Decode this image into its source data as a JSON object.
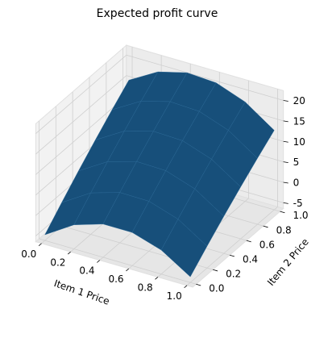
{
  "chart_data": {
    "type": "surface",
    "title": "Expected profit curve",
    "xlabel": "Item 1 Price",
    "ylabel": "Item 2 Price",
    "x": [
      0,
      0.2,
      0.4,
      0.6,
      0.8,
      1
    ],
    "y": [
      0,
      0.2,
      0.4,
      0.6,
      0.8,
      1
    ],
    "z": [
      [
        -5,
        -0.52,
        1.72,
        1.72,
        -0.52,
        -5
      ],
      [
        -0.68,
        3.72,
        5.88,
        5.8,
        3.48,
        -1.08
      ],
      [
        3.48,
        7.8,
        9.88,
        9.72,
        7.32,
        2.68
      ],
      [
        7.48,
        11.72,
        13.72,
        13.48,
        11.0,
        6.28
      ],
      [
        11.32,
        15.48,
        17.4,
        17.08,
        14.52,
        9.72
      ],
      [
        15,
        19.08,
        20.92,
        20.52,
        17.88,
        13
      ]
    ],
    "xlim": [
      -0.04,
      1.04
    ],
    "ylim": [
      -0.04,
      1.04
    ],
    "zlim": [
      -6.4,
      22.4
    ],
    "xticks": [
      {
        "value": 0,
        "label": "0.0"
      },
      0.2,
      0.4,
      0.6,
      0.8,
      {
        "value": 1,
        "label": "1.0"
      }
    ],
    "yticks": [
      {
        "value": 0,
        "label": "0.0"
      },
      0.2,
      0.4,
      0.6,
      0.8,
      {
        "value": 1,
        "label": "1.0"
      }
    ],
    "zticks": [
      -5,
      0,
      5,
      10,
      15,
      20
    ],
    "color": "#174f7a",
    "grid": true
  }
}
